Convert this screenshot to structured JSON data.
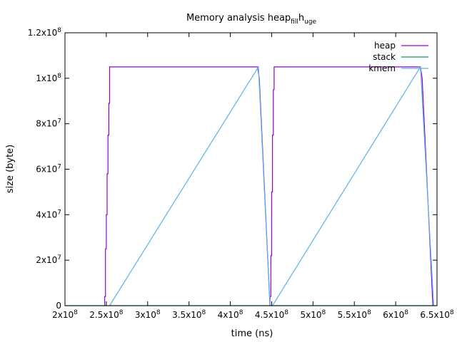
{
  "chart_data": {
    "type": "line",
    "title": {
      "base": "Memory analysis heap",
      "sub1": "fill",
      "mid": "h",
      "sub2": "uge"
    },
    "xlabel": "time (ns)",
    "ylabel": "size (byte)",
    "xlim": [
      200000000,
      650000000
    ],
    "ylim": [
      0,
      120000000
    ],
    "grid": false,
    "legend_position": "top-right",
    "xticks": [
      {
        "value": 200000000,
        "mant": "2",
        "exp": "8"
      },
      {
        "value": 250000000,
        "mant": "2.5",
        "exp": "8"
      },
      {
        "value": 300000000,
        "mant": "3",
        "exp": "8"
      },
      {
        "value": 350000000,
        "mant": "3.5",
        "exp": "8"
      },
      {
        "value": 400000000,
        "mant": "4",
        "exp": "8"
      },
      {
        "value": 450000000,
        "mant": "4.5",
        "exp": "8"
      },
      {
        "value": 500000000,
        "mant": "5",
        "exp": "8"
      },
      {
        "value": 550000000,
        "mant": "5.5",
        "exp": "8"
      },
      {
        "value": 600000000,
        "mant": "6",
        "exp": "8"
      },
      {
        "value": 650000000,
        "mant": "6.5",
        "exp": "8"
      }
    ],
    "yticks": [
      {
        "value": 0,
        "mant": "0",
        "exp": ""
      },
      {
        "value": 20000000,
        "mant": "2",
        "exp": "7"
      },
      {
        "value": 40000000,
        "mant": "4",
        "exp": "7"
      },
      {
        "value": 60000000,
        "mant": "6",
        "exp": "7"
      },
      {
        "value": 80000000,
        "mant": "8",
        "exp": "7"
      },
      {
        "value": 100000000,
        "mant": "1",
        "exp": "8"
      },
      {
        "value": 120000000,
        "mant": "1.2",
        "exp": "8"
      }
    ],
    "series": [
      {
        "name": "heap",
        "color": "#9400d3",
        "points": [
          [
            248000000,
            0
          ],
          [
            248000000,
            4000000
          ],
          [
            249000000,
            4000000
          ],
          [
            249000000,
            25000000
          ],
          [
            250000000,
            25000000
          ],
          [
            250000000,
            40000000
          ],
          [
            251000000,
            40000000
          ],
          [
            251000000,
            58000000
          ],
          [
            252000000,
            58000000
          ],
          [
            252000000,
            75000000
          ],
          [
            253000000,
            75000000
          ],
          [
            253000000,
            89000000
          ],
          [
            254000000,
            89000000
          ],
          [
            254000000,
            105000000
          ],
          [
            433000000,
            105000000
          ],
          [
            435000000,
            100000000
          ],
          [
            448000000,
            0
          ],
          [
            448000000,
            4000000
          ],
          [
            449000000,
            4000000
          ],
          [
            449000000,
            22000000
          ],
          [
            450000000,
            22000000
          ],
          [
            450000000,
            50000000
          ],
          [
            451000000,
            50000000
          ],
          [
            451000000,
            75000000
          ],
          [
            452000000,
            75000000
          ],
          [
            452000000,
            95000000
          ],
          [
            453000000,
            95000000
          ],
          [
            453000000,
            105000000
          ],
          [
            630000000,
            105000000
          ],
          [
            632000000,
            100000000
          ],
          [
            645000000,
            0
          ]
        ]
      },
      {
        "name": "stack",
        "color": "#009e73",
        "points": [
          [
            200000000,
            0
          ],
          [
            650000000,
            0
          ]
        ]
      },
      {
        "name": "kmem",
        "color": "#56b4e9",
        "points": [
          [
            254000000,
            0
          ],
          [
            434000000,
            105000000
          ],
          [
            448000000,
            0
          ],
          [
            451000000,
            0
          ],
          [
            630000000,
            105000000
          ],
          [
            646000000,
            0
          ]
        ]
      }
    ]
  }
}
